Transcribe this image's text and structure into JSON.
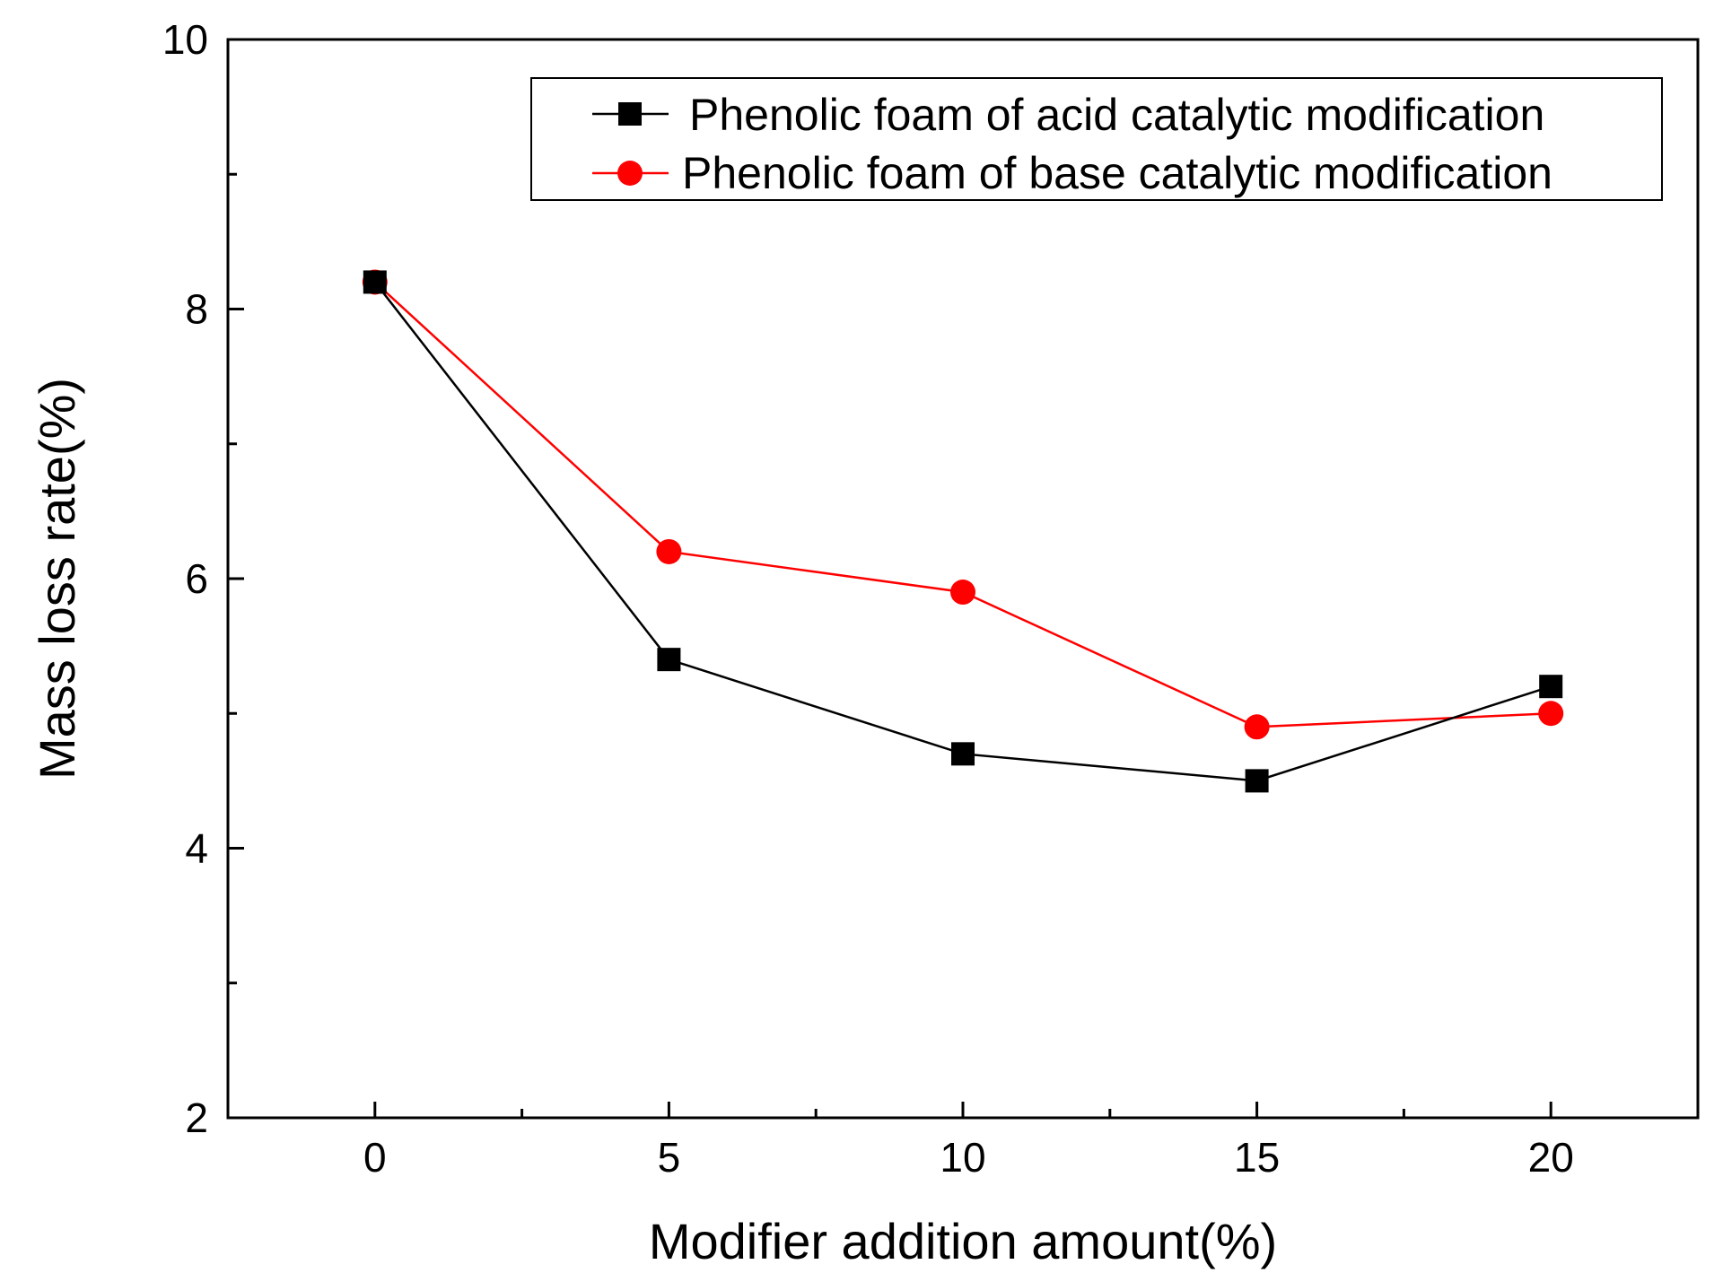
{
  "chart_data": {
    "type": "line",
    "title": "",
    "xlabel": "Modifier addition amount(%)",
    "ylabel": "Mass loss rate(%)",
    "xlim": [
      -2.5,
      22.5
    ],
    "ylim": [
      2,
      10
    ],
    "x_ticks": [
      0,
      5,
      10,
      15,
      20
    ],
    "x_tick_labels": [
      "0",
      "5",
      "10",
      "15",
      "20"
    ],
    "x_minor_ticks": [
      2.5,
      7.5,
      12.5,
      17.5
    ],
    "y_ticks": [
      2,
      4,
      6,
      8,
      10
    ],
    "y_tick_labels": [
      "2",
      "4",
      "6",
      "8",
      "10"
    ],
    "y_minor_ticks": [
      3,
      5,
      7,
      9
    ],
    "grid": false,
    "legend_position": "top-right",
    "x": [
      0,
      5,
      10,
      15,
      20
    ],
    "series": [
      {
        "name": "Phenolic foam of acid catalytic modification",
        "marker": "square",
        "color": "#000000",
        "values": [
          8.2,
          5.4,
          4.7,
          4.5,
          5.2
        ]
      },
      {
        "name": "Phenolic foam of base catalytic modification",
        "marker": "circle",
        "color": "#ff0000",
        "values": [
          8.2,
          6.2,
          5.9,
          4.9,
          5.0
        ]
      }
    ]
  }
}
